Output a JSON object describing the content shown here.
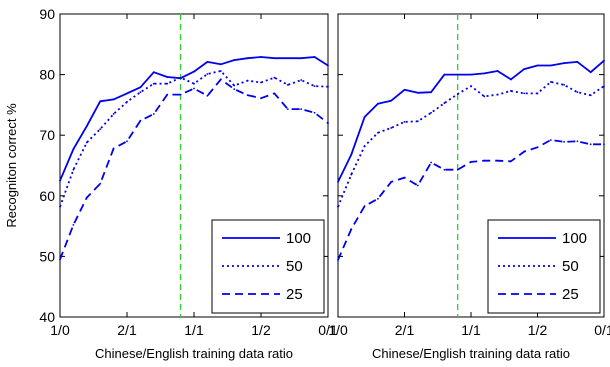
{
  "chart_data": {
    "type": "line",
    "ylabel": "Recogniton correct %",
    "ylim": [
      40,
      90
    ],
    "yticks": [
      40,
      50,
      60,
      70,
      80,
      90
    ],
    "x_tick_labels": [
      "1/0",
      "2/1",
      "1/1",
      "1/2",
      "0/1"
    ],
    "reference_line_x": 9,
    "colors": {
      "series": "#0000ee",
      "reference": "#33cc33"
    },
    "panels": [
      {
        "xlabel": "Chinese/English training data ratio",
        "legend_position": "bottom-right",
        "series": [
          {
            "name": "100",
            "style": "solid",
            "values": [
              62.5,
              67.7,
              71.5,
              75.6,
              75.9,
              76.9,
              77.9,
              80.4,
              79.6,
              79.4,
              80.5,
              82.1,
              81.7,
              82.4,
              82.7,
              82.9,
              82.7,
              82.7,
              82.7,
              82.9,
              81.5
            ]
          },
          {
            "name": "50",
            "style": "dotted",
            "values": [
              58.2,
              64.3,
              68.8,
              71.0,
              73.5,
              75.5,
              77.1,
              78.5,
              78.5,
              79.5,
              78.5,
              80.1,
              80.6,
              78.2,
              79.0,
              78.7,
              79.5,
              78.3,
              79.1,
              78.1,
              78.0
            ]
          },
          {
            "name": "25",
            "style": "dashed",
            "values": [
              49.5,
              55.2,
              59.7,
              62.0,
              67.8,
              69.0,
              72.4,
              73.5,
              76.7,
              76.7,
              77.7,
              76.5,
              79.2,
              77.6,
              76.6,
              76.1,
              76.9,
              74.3,
              74.3,
              73.7,
              72.0
            ]
          }
        ]
      },
      {
        "xlabel": "Chinese/English training data ratio",
        "legend_position": "bottom-right",
        "series": [
          {
            "name": "100",
            "style": "solid",
            "values": [
              62.3,
              66.8,
              73.0,
              75.2,
              75.7,
              77.5,
              77.0,
              77.1,
              80.0,
              80.0,
              80.0,
              80.2,
              80.6,
              79.2,
              80.9,
              81.5,
              81.5,
              81.9,
              82.1,
              80.4,
              82.3
            ]
          },
          {
            "name": "50",
            "style": "dotted",
            "values": [
              58.2,
              63.5,
              68.2,
              70.4,
              71.2,
              72.2,
              72.3,
              73.7,
              75.3,
              76.8,
              78.1,
              76.4,
              76.7,
              77.3,
              76.9,
              76.9,
              78.8,
              78.3,
              77.1,
              76.6,
              78.1
            ]
          },
          {
            "name": "25",
            "style": "dashed",
            "values": [
              49.4,
              54.5,
              58.3,
              59.5,
              62.3,
              63.0,
              61.7,
              65.5,
              64.3,
              64.3,
              65.6,
              65.8,
              65.8,
              65.7,
              67.3,
              68.0,
              69.2,
              68.9,
              69.0,
              68.5,
              68.5
            ]
          }
        ]
      }
    ]
  }
}
